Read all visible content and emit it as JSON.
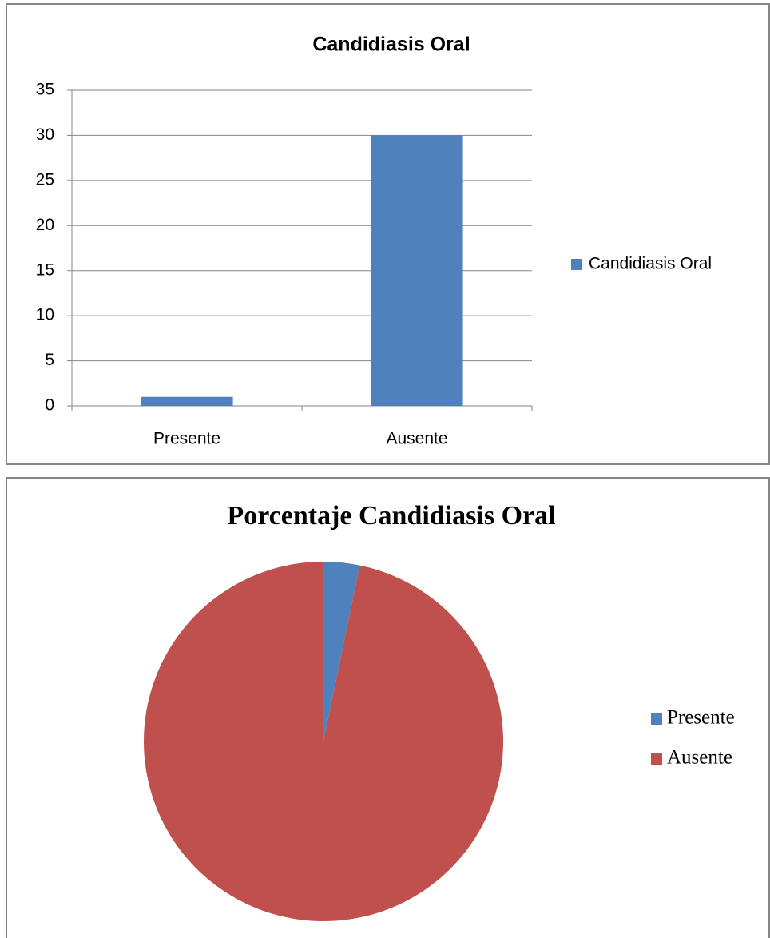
{
  "chart_data": [
    {
      "type": "bar",
      "title": "Candidiasis Oral",
      "categories": [
        "Presente",
        "Ausente"
      ],
      "series": [
        {
          "name": "Candidiasis Oral",
          "color": "#4f81bd",
          "values": [
            1,
            30
          ]
        }
      ],
      "ylim": [
        0,
        35
      ],
      "yticks": [
        0,
        5,
        10,
        15,
        20,
        25,
        30,
        35
      ],
      "grid": true,
      "legend": "right"
    },
    {
      "type": "pie",
      "title": "Porcentaje Candidiasis Oral",
      "categories": [
        "Presente",
        "Ausente"
      ],
      "values": [
        1,
        30
      ],
      "colors": [
        "#4f81bd",
        "#c0504d"
      ],
      "legend": "right"
    }
  ]
}
